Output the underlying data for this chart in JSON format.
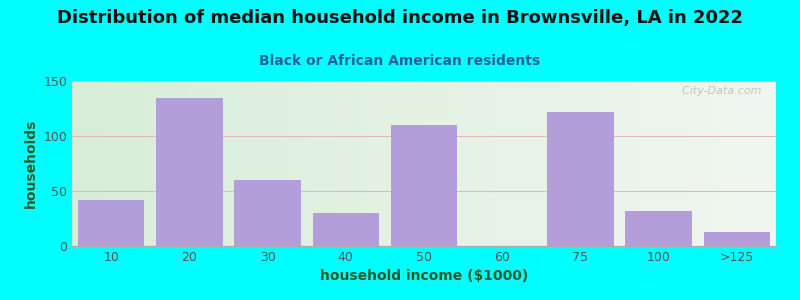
{
  "title": "Distribution of median household income in Brownsville, LA in 2022",
  "subtitle": "Black or African American residents",
  "xlabel": "household income ($1000)",
  "ylabel": "households",
  "background_outer": "#00FFFF",
  "background_inner_left": "#d8edd8",
  "background_inner_right": "#eef5ee",
  "bar_color": "#b39ddb",
  "bar_edge_color": "#b39ddb",
  "title_color": "#111111",
  "subtitle_color": "#2a6099",
  "axis_label_color": "#2a5a2a",
  "tick_label_color": "#555555",
  "grid_color": "#e0b8b8",
  "categories": [
    "10",
    "20",
    "30",
    "40",
    "50",
    "60",
    "75",
    "100",
    ">125"
  ],
  "values": [
    42,
    135,
    60,
    30,
    110,
    0,
    122,
    32,
    13
  ],
  "ylim": [
    0,
    150
  ],
  "yticks": [
    0,
    50,
    100,
    150
  ],
  "watermark": "  City-Data.com",
  "figsize": [
    8.0,
    3.0
  ],
  "dpi": 100,
  "title_fontsize": 13,
  "subtitle_fontsize": 10,
  "xlabel_fontsize": 10,
  "ylabel_fontsize": 10
}
